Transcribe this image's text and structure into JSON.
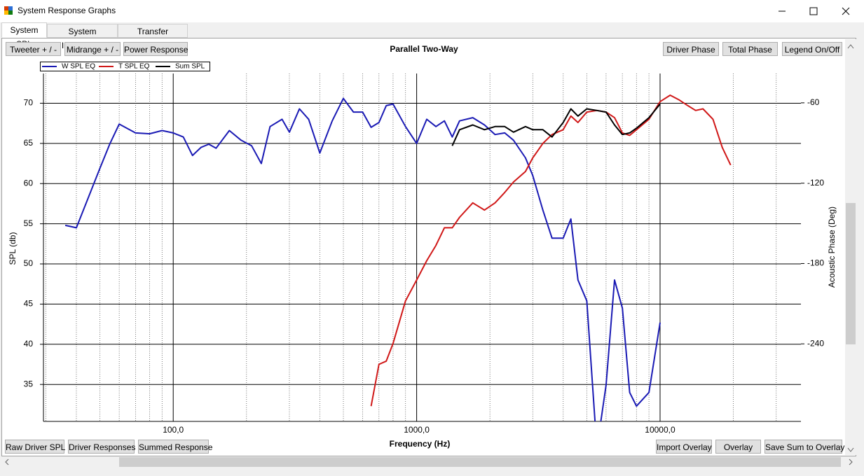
{
  "window": {
    "title": "System Response Graphs"
  },
  "tabs": [
    "System SPL",
    "System Impedance",
    "Transfer Functions"
  ],
  "buttons_top_left": [
    "Tweeter + / -",
    "Midrange + / -",
    "Power Response"
  ],
  "buttons_top_right": [
    "Driver Phase",
    "Total Phase",
    "Legend On/Off"
  ],
  "buttons_bottom_left": [
    "Raw Driver SPL",
    "Driver Responses",
    "Summed Response"
  ],
  "buttons_bottom_right": [
    "Import Overlay",
    "Overlay",
    "Save Sum to Overlay"
  ],
  "chart_data": {
    "type": "line",
    "title": "Parallel Two-Way",
    "x_label": "Frequency (Hz)",
    "y_label": "SPL (db)",
    "y2_label": "Acoustic Phase (Deg)",
    "xscale": "log",
    "grid": true,
    "legend": "top-left",
    "xlim": [
      29.3,
      37900
    ],
    "xticks": [
      {
        "value": 100,
        "label": "100,0"
      },
      {
        "value": 1000,
        "label": "1000,0"
      },
      {
        "value": 10000,
        "label": "10000,0"
      }
    ],
    "xminorgrid": [
      30,
      40,
      50,
      60,
      70,
      80,
      90,
      200,
      300,
      400,
      500,
      600,
      700,
      800,
      900,
      2000,
      3000,
      4000,
      5000,
      6000,
      7000,
      8000,
      9000,
      20000,
      30000
    ],
    "ylim": [
      30.4,
      73.7
    ],
    "yticks": [
      35,
      40,
      45,
      50,
      55,
      60,
      65,
      70
    ],
    "y2lim": [
      -297.9,
      -38.1
    ],
    "y2ticks": [
      -60,
      -120,
      -180,
      -240
    ],
    "x": [
      36,
      40,
      45,
      50,
      55,
      60,
      70,
      80,
      90,
      100,
      110,
      120,
      130,
      140,
      150,
      170,
      190,
      210,
      230,
      250,
      280,
      300,
      330,
      360,
      400,
      450,
      500,
      550,
      600,
      650,
      700,
      750,
      800,
      900,
      1000,
      1100,
      1200,
      1300,
      1400,
      1500,
      1700,
      1900,
      2100,
      2300,
      2500,
      2800,
      3000,
      3300,
      3600,
      4000,
      4300,
      4600,
      5000,
      5500,
      6000,
      6500,
      7000,
      7500,
      8000,
      9000,
      10000,
      11000,
      12000,
      13000,
      14000,
      15000,
      16500,
      18000,
      19500
    ],
    "series": [
      {
        "name": "W SPL EQ",
        "color": "#1a1ab4",
        "values": [
          54.8,
          54.5,
          58.4,
          61.9,
          65.0,
          67.4,
          66.3,
          66.2,
          66.6,
          66.3,
          65.8,
          63.5,
          64.5,
          64.9,
          64.4,
          66.6,
          65.4,
          64.7,
          62.5,
          67.1,
          68.0,
          66.4,
          69.3,
          68.0,
          63.8,
          67.8,
          70.6,
          68.9,
          68.9,
          67.0,
          67.6,
          69.7,
          69.9,
          67.1,
          65.0,
          68.0,
          67.1,
          67.8,
          65.8,
          67.8,
          68.2,
          67.3,
          66.1,
          66.3,
          65.4,
          63.2,
          61.0,
          56.7,
          53.2,
          53.2,
          55.6,
          48.0,
          45.4,
          27,
          34.9,
          48.0,
          44.5,
          34.0,
          32.3,
          34.0,
          42.7,
          null,
          null,
          null,
          null,
          null,
          null,
          null,
          null
        ]
      },
      {
        "name": "T SPL EQ",
        "color": "#d01818",
        "values": [
          null,
          null,
          null,
          null,
          null,
          null,
          null,
          null,
          null,
          null,
          null,
          null,
          null,
          null,
          null,
          null,
          null,
          null,
          null,
          null,
          null,
          null,
          null,
          null,
          null,
          null,
          null,
          null,
          null,
          32.3,
          37.5,
          37.9,
          40.1,
          45.4,
          48.0,
          50.4,
          52.3,
          54.5,
          54.5,
          55.8,
          57.6,
          56.7,
          57.6,
          58.9,
          60.2,
          61.5,
          63.2,
          65.0,
          66.1,
          66.7,
          68.4,
          67.6,
          68.9,
          69.1,
          68.9,
          68.2,
          66.3,
          66.0,
          66.7,
          68.0,
          70.2,
          71.0,
          70.4,
          69.7,
          69.1,
          69.3,
          68.0,
          64.5,
          62.3
        ]
      },
      {
        "name": "Sum SPL",
        "color": "#000000",
        "values": [
          null,
          null,
          null,
          null,
          null,
          null,
          null,
          null,
          null,
          null,
          null,
          null,
          null,
          null,
          null,
          null,
          null,
          null,
          null,
          null,
          null,
          null,
          null,
          null,
          null,
          null,
          null,
          null,
          null,
          null,
          null,
          null,
          null,
          null,
          null,
          null,
          null,
          null,
          64.7,
          66.7,
          67.3,
          66.7,
          67.1,
          67.1,
          66.4,
          67.1,
          66.7,
          66.7,
          65.8,
          67.6,
          69.3,
          68.4,
          69.3,
          69.1,
          68.9,
          67.3,
          66.1,
          66.3,
          66.9,
          68.2,
          69.9,
          null,
          null,
          null,
          null,
          null,
          null,
          null,
          null
        ]
      }
    ]
  }
}
